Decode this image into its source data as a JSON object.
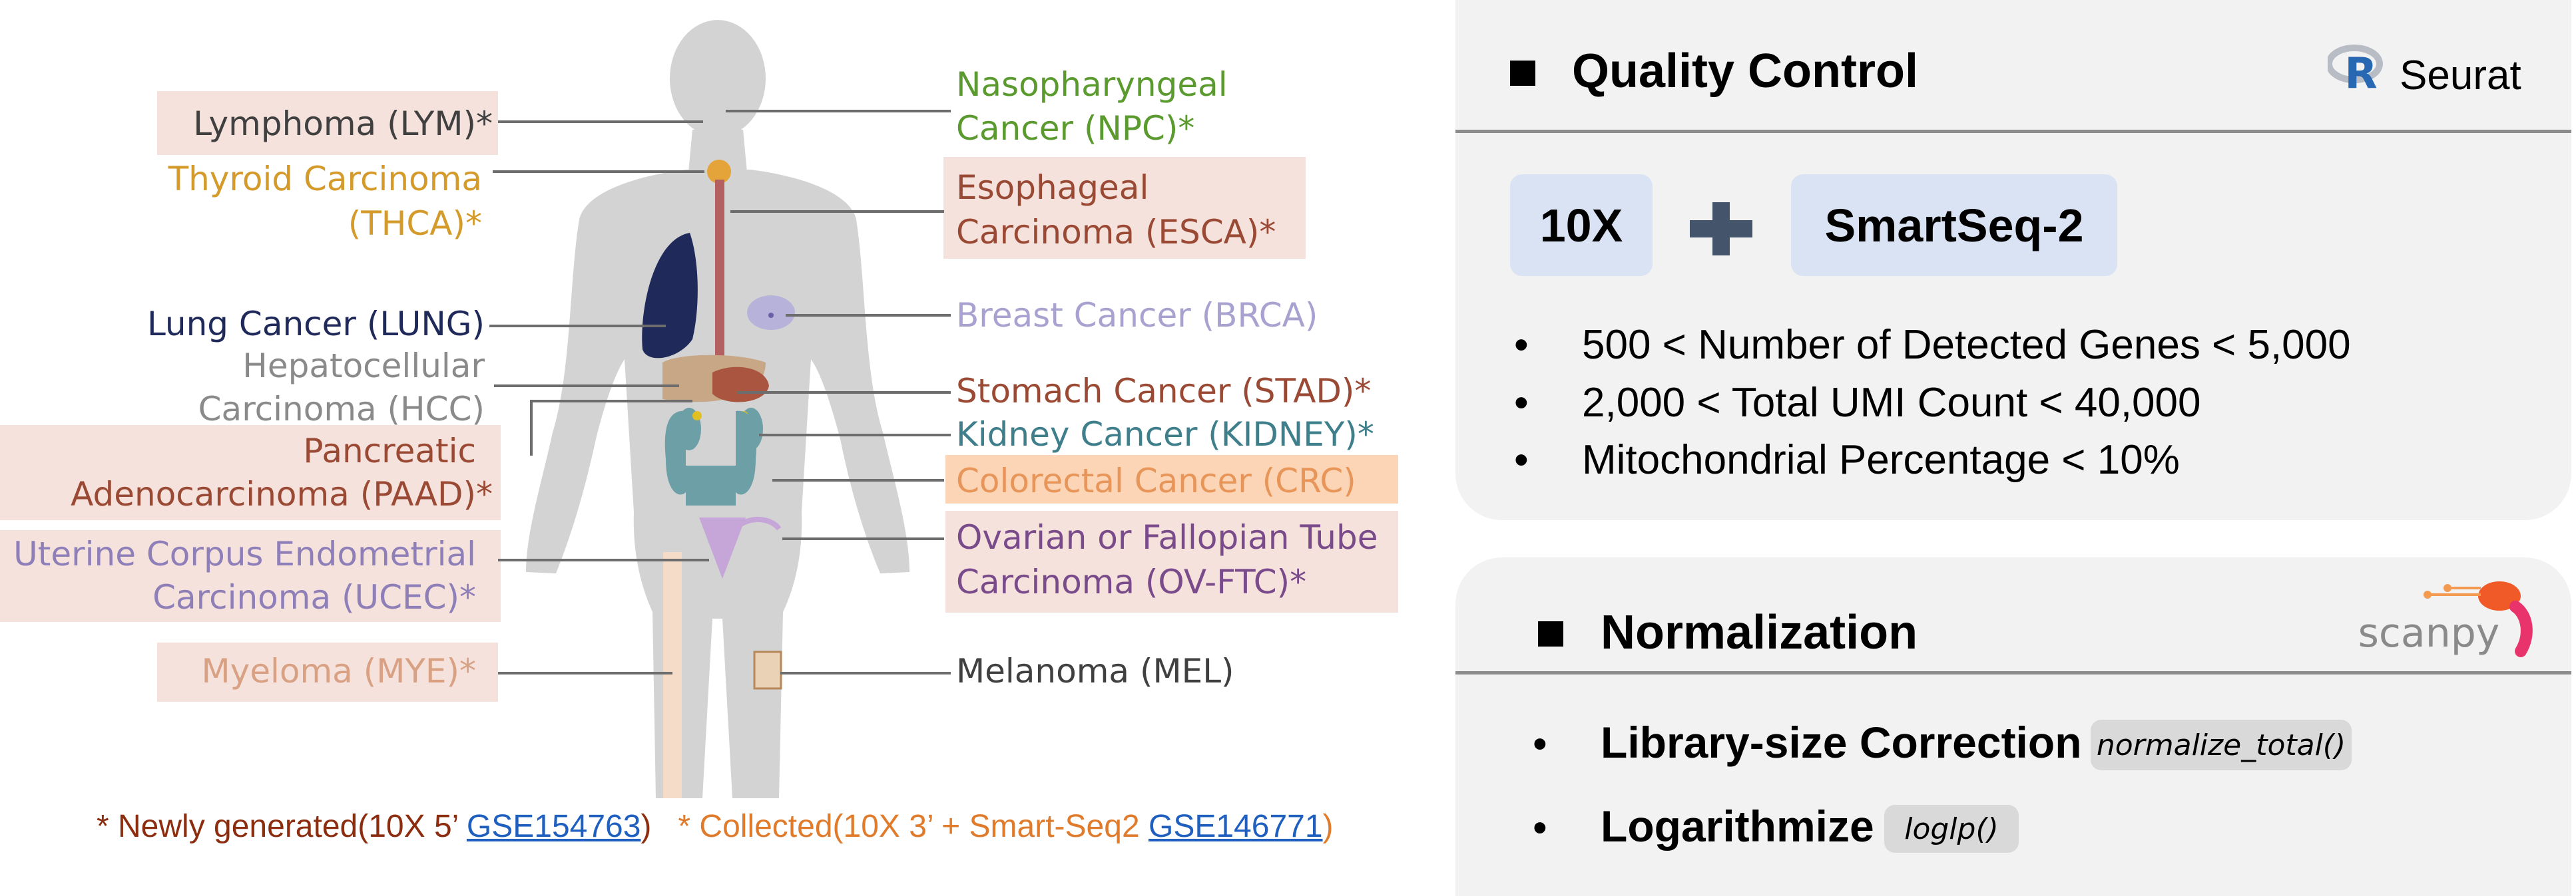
{
  "colors": {
    "green": "#5a9a2e",
    "gold": "#d49a2a",
    "navy": "#1f2a5a",
    "gray": "#8a8a8a",
    "brown": "#9a4a34",
    "teal": "#3f7f8c",
    "orange": "#f5a35a",
    "purple": "#7a4b8b",
    "lavender": "#a8a2d0",
    "uterine": "#8e7fb8",
    "myeloma": "#d9a184",
    "pink_bg": "#f6e2dc",
    "orange_bg": "#fbd5b5",
    "footer_new": "#8b2d0e",
    "footer_collected": "#e07b2c",
    "link": "#1f5fbf"
  },
  "labels": {
    "lymphoma": "Lymphoma (LYM)*",
    "thyroid_1": "Thyroid Carcinoma",
    "thyroid_2": "(THCA)*",
    "lung": "Lung Cancer (LUNG)",
    "hcc_1": "Hepatocellular",
    "hcc_2": "Carcinoma (HCC)",
    "paad_1": "Pancreatic",
    "paad_2": "Adenocarcinoma (PAAD)*",
    "ucec_1": "Uterine Corpus Endometrial",
    "ucec_2": "Carcinoma (UCEC)*",
    "myeloma": "Myeloma (MYE)*",
    "npc_1": "Nasopharyngeal",
    "npc_2": "Cancer (NPC)*",
    "esca_1": "Esophageal",
    "esca_2": "Carcinoma (ESCA)*",
    "brca": "Breast Cancer (BRCA)",
    "stad": "Stomach Cancer (STAD)*",
    "kidney": "Kidney Cancer (KIDNEY)*",
    "crc": "Colorectal Cancer (CRC)",
    "ovftc_1": "Ovarian or Fallopian Tube",
    "ovftc_2": "Carcinoma (OV-FTC)*",
    "mel": "Melanoma (MEL)"
  },
  "footer": {
    "new_prefix": "* Newly generated(10X 5’ ",
    "new_link": "GSE154763",
    "new_suffix": ")",
    "col_prefix": "* Collected(10X 3’ + Smart-Seq2 ",
    "col_link": "GSE146771",
    "col_suffix": ")"
  },
  "qc": {
    "title": "Quality Control",
    "tool_logo": "R",
    "tool_name": "Seurat",
    "chip_1": "10X",
    "plus": "+",
    "chip_2": "SmartSeq-2",
    "bullets": [
      "500 < Number of Detected Genes < 5,000",
      "2,000 < Total UMI Count < 40,000",
      "Mitochondrial Percentage < 10%"
    ],
    "bullet_char": "•"
  },
  "norm": {
    "title": "Normalization",
    "tool_name": "scanpy",
    "item_1": "Library-size Correction",
    "code_1": "normalize_total()",
    "item_2": "Logarithmize",
    "code_2": "loglp()",
    "bullet_char": "•"
  }
}
